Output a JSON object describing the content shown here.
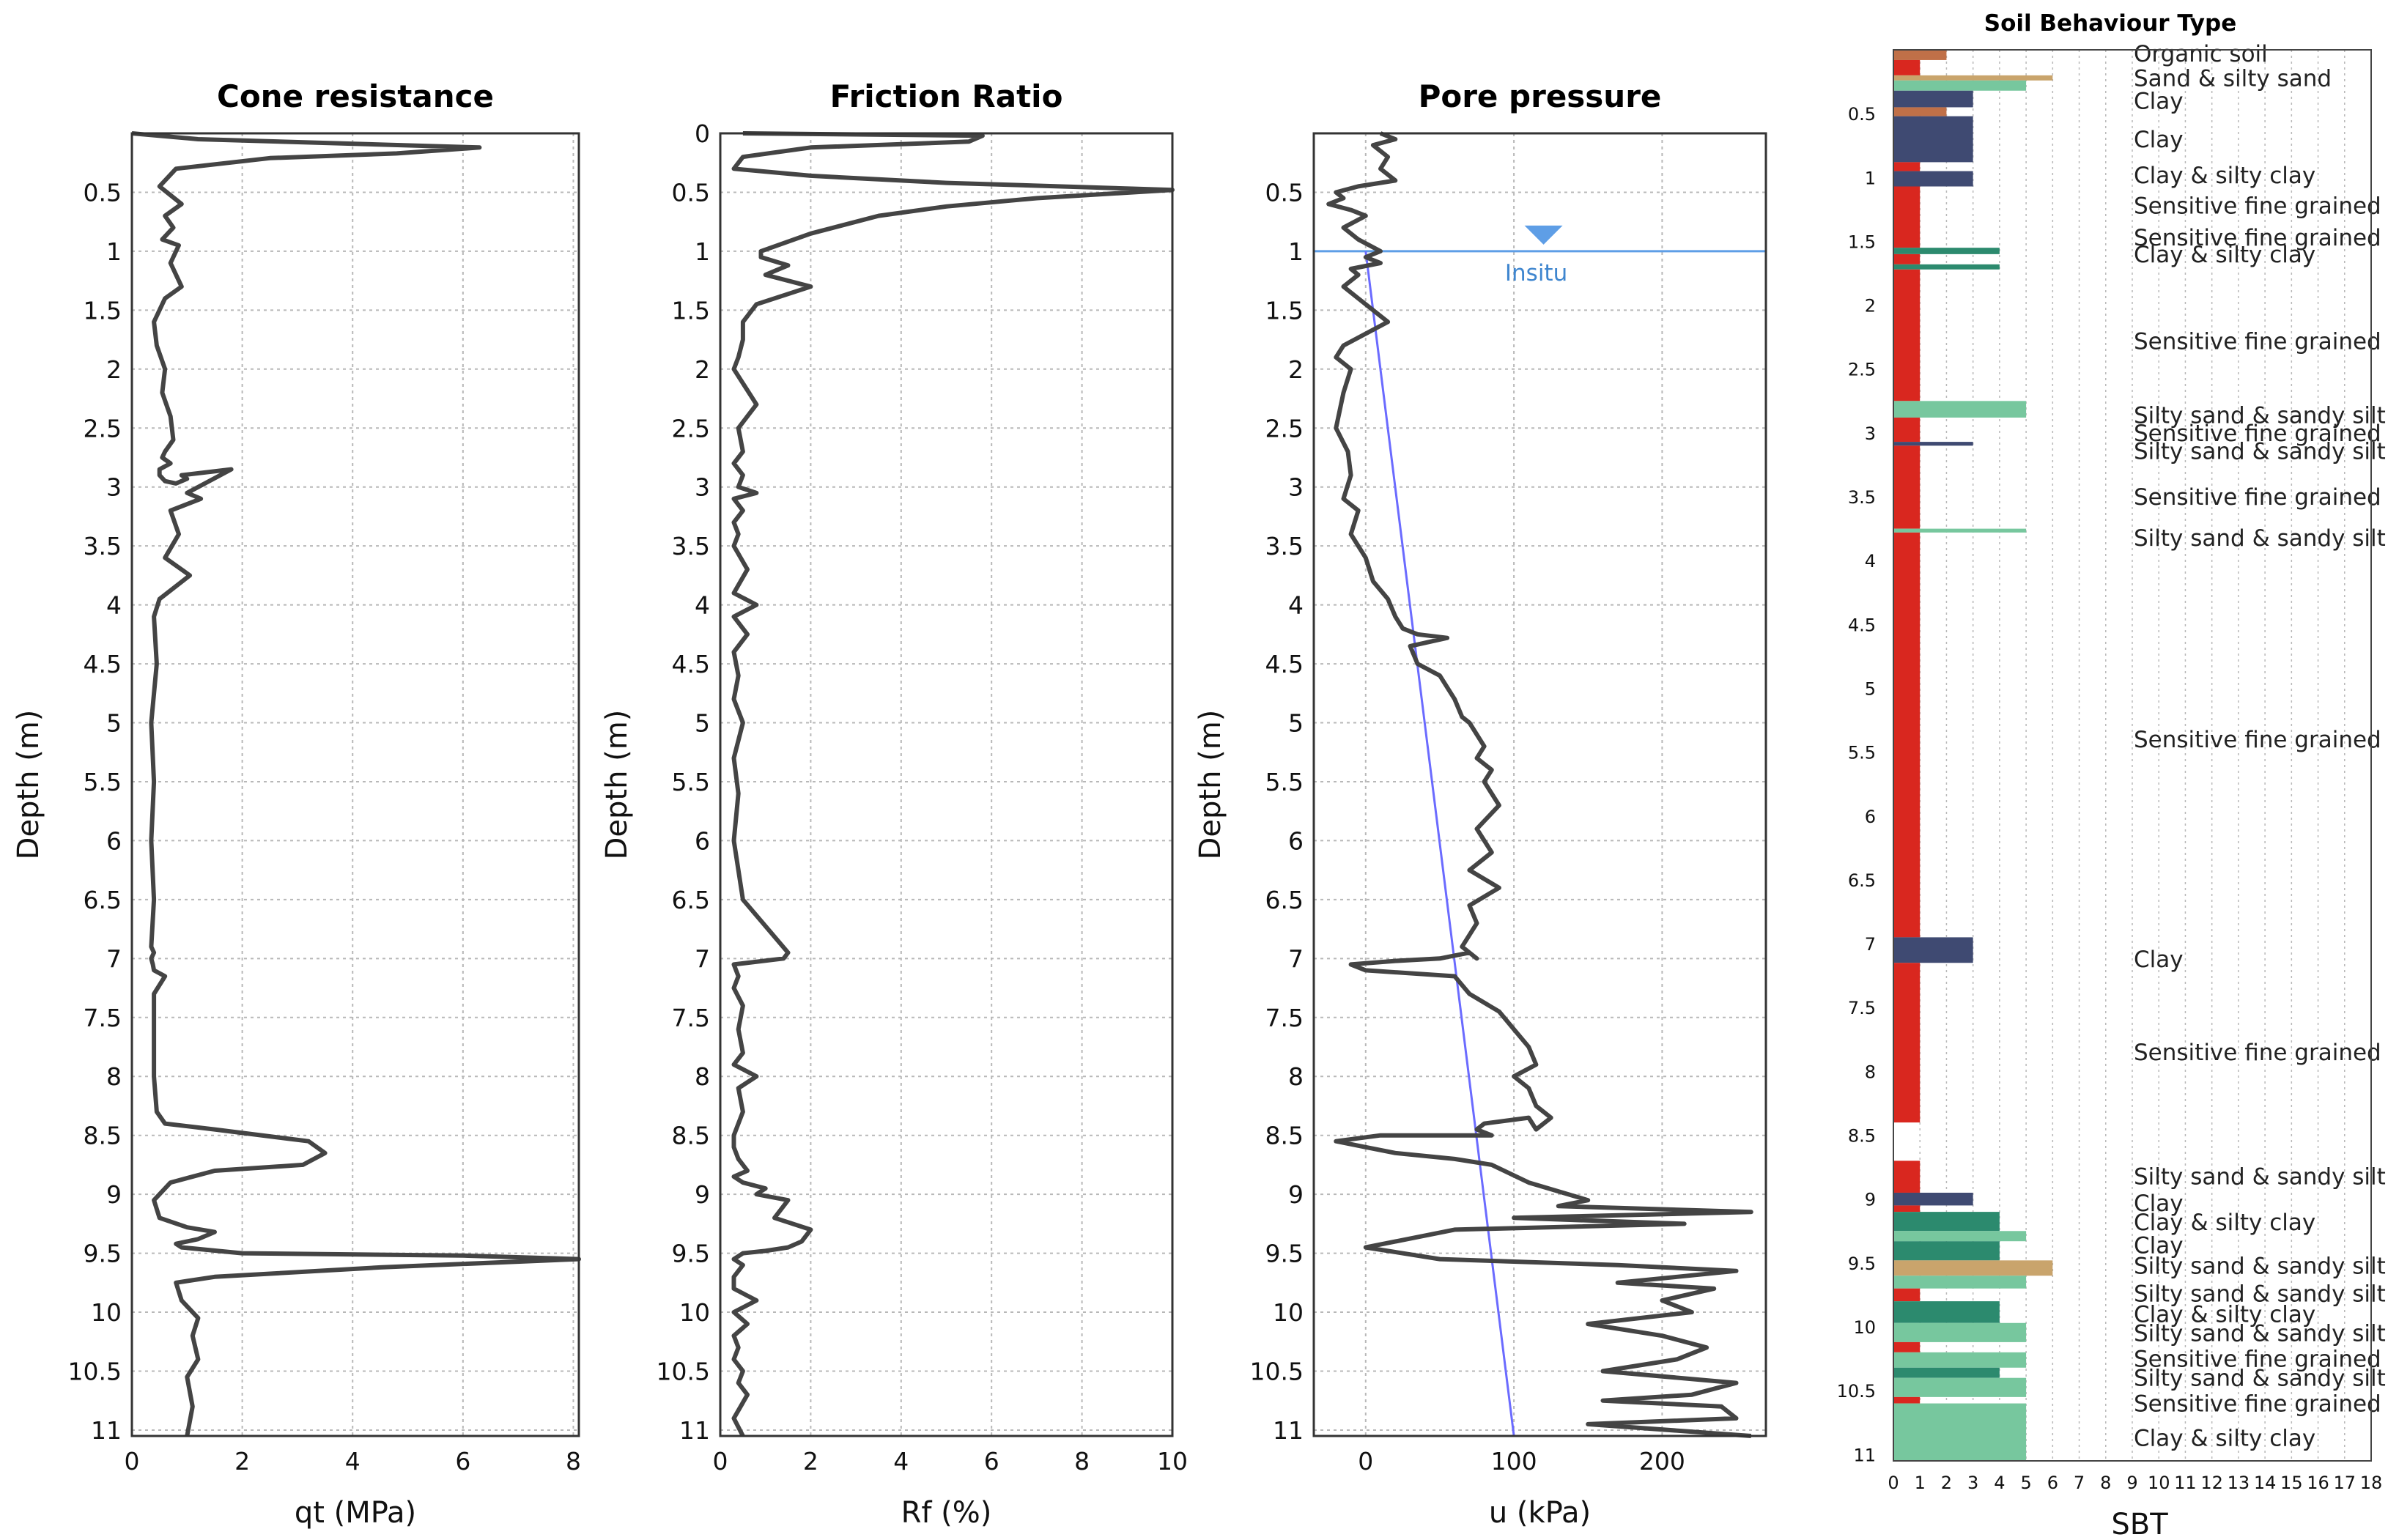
{
  "colors": {
    "curve": "#444444",
    "water": "#5e9ee6",
    "hydro": "#6b6bff",
    "sbt_red": "#d9271f",
    "sbt_navy": "#3f4a72",
    "sbt_green": "#77c79e",
    "sbt_teal": "#2c8a6e",
    "sbt_brown": "#c07048",
    "sbt_tan": "#c9a46c"
  },
  "chart_data": [
    {
      "type": "line",
      "title": "Cone resistance",
      "xlabel": "qt (MPa)",
      "ylabel": "Depth (m)",
      "xlim": [
        0,
        8.1
      ],
      "ylim": [
        11.05,
        0
      ],
      "xticks": [
        "0",
        "2",
        "4",
        "6",
        "8"
      ],
      "xtick_values": [
        0,
        2,
        4,
        6,
        8
      ],
      "yticks": [
        "0.5",
        "1",
        "1.5",
        "2",
        "2.5",
        "3",
        "3.5",
        "4",
        "4.5",
        "5",
        "5.5",
        "6",
        "6.5",
        "7",
        "7.5",
        "8",
        "8.5",
        "9",
        "9.5",
        "10",
        "10.5",
        "11"
      ],
      "ytick_values": [
        0.5,
        1,
        1.5,
        2,
        2.5,
        3,
        3.5,
        4,
        4.5,
        5,
        5.5,
        6,
        6.5,
        7,
        7.5,
        8,
        8.5,
        9,
        9.5,
        10,
        10.5,
        11
      ],
      "x": [
        0,
        1.2,
        6.3,
        4.8,
        2.5,
        0.8,
        0.5,
        0.9,
        0.6,
        0.75,
        0.55,
        0.85,
        0.7,
        0.9,
        0.6,
        0.4,
        0.45,
        0.6,
        0.55,
        0.7,
        0.75,
        0.6,
        0.55,
        0.7,
        0.5,
        0.5,
        0.6,
        0.8,
        1.0,
        0.9,
        1.8,
        1.0,
        1.25,
        0.7,
        0.85,
        0.6,
        1.05,
        0.5,
        0.4,
        0.45,
        0.35,
        0.4,
        0.35,
        0.4,
        0.35,
        0.4,
        0.35,
        0.38,
        0.4,
        0.6,
        0.4,
        0.4,
        0.4,
        0.45,
        0.6,
        1.5,
        3.2,
        3.5,
        3.1,
        1.5,
        0.7,
        0.4,
        0.5,
        1.0,
        1.5,
        1.2,
        0.8,
        0.9,
        2.0,
        6.0,
        8.1,
        4.5,
        1.5,
        0.8,
        0.9,
        1.2,
        1.1,
        1.2,
        1.0,
        1.1,
        1.0
      ],
      "y": [
        0,
        0.05,
        0.12,
        0.17,
        0.21,
        0.3,
        0.45,
        0.6,
        0.7,
        0.8,
        0.9,
        0.95,
        1.1,
        1.3,
        1.4,
        1.6,
        1.8,
        2.0,
        2.2,
        2.4,
        2.6,
        2.7,
        2.75,
        2.8,
        2.85,
        2.9,
        2.95,
        2.97,
        2.93,
        2.9,
        2.85,
        3.05,
        3.1,
        3.2,
        3.4,
        3.6,
        3.75,
        3.95,
        4.1,
        4.5,
        5.0,
        5.5,
        6.0,
        6.5,
        6.9,
        6.95,
        7.0,
        7.05,
        7.1,
        7.15,
        7.3,
        7.6,
        8.0,
        8.3,
        8.4,
        8.45,
        8.55,
        8.65,
        8.75,
        8.8,
        8.9,
        9.05,
        9.2,
        9.28,
        9.32,
        9.38,
        9.42,
        9.45,
        9.5,
        9.52,
        9.55,
        9.62,
        9.7,
        9.75,
        9.9,
        10.05,
        10.2,
        10.4,
        10.55,
        10.8,
        11.05
      ]
    },
    {
      "type": "line",
      "title": "Friction Ratio",
      "xlabel": "Rf (%)",
      "ylabel": "Depth (m)",
      "xlim": [
        0,
        10
      ],
      "ylim": [
        11.05,
        0
      ],
      "xticks": [
        "0",
        "2",
        "4",
        "6",
        "8",
        "10"
      ],
      "xtick_values": [
        0,
        2,
        4,
        6,
        8,
        10
      ],
      "yticks": [
        "0",
        "0.5",
        "1",
        "1.5",
        "2",
        "2.5",
        "3",
        "3.5",
        "4",
        "4.5",
        "5",
        "5.5",
        "6",
        "6.5",
        "7",
        "7.5",
        "8",
        "8.5",
        "9",
        "9.5",
        "10",
        "10.5",
        "11"
      ],
      "ytick_values": [
        0,
        0.5,
        1,
        1.5,
        2,
        2.5,
        3,
        3.5,
        4,
        4.5,
        5,
        5.5,
        6,
        6.5,
        7,
        7.5,
        8,
        8.5,
        9,
        9.5,
        10,
        10.5,
        11
      ],
      "x": [
        0.5,
        5.8,
        5.5,
        2.0,
        0.5,
        0.3,
        2.0,
        5.0,
        10.0,
        7.0,
        5.0,
        3.5,
        2.0,
        0.9,
        0.9,
        1.5,
        1.0,
        2.0,
        0.8,
        0.5,
        0.5,
        0.4,
        0.3,
        0.8,
        0.4,
        0.5,
        0.3,
        0.5,
        0.4,
        0.8,
        0.3,
        0.5,
        0.3,
        0.4,
        0.3,
        0.6,
        0.3,
        0.8,
        0.3,
        0.6,
        0.3,
        0.4,
        0.3,
        0.5,
        0.3,
        0.4,
        0.3,
        0.5,
        1.5,
        1.4,
        0.3,
        0.4,
        0.3,
        0.5,
        0.4,
        0.5,
        0.3,
        0.8,
        0.4,
        0.5,
        0.3,
        0.3,
        0.4,
        0.6,
        0.3,
        0.5,
        1.0,
        0.8,
        1.5,
        1.2,
        2.0,
        1.8,
        1.5,
        1.0,
        0.5,
        0.3,
        0.5,
        0.3,
        0.3,
        0.8,
        0.3,
        0.6,
        0.3,
        0.4,
        0.3,
        0.5,
        0.4,
        0.6,
        0.3,
        0.5
      ],
      "y": [
        0,
        0.02,
        0.07,
        0.12,
        0.2,
        0.3,
        0.36,
        0.42,
        0.48,
        0.55,
        0.62,
        0.7,
        0.85,
        1.0,
        1.05,
        1.12,
        1.2,
        1.3,
        1.45,
        1.6,
        1.75,
        1.9,
        2.0,
        2.3,
        2.5,
        2.7,
        2.8,
        2.9,
        3.0,
        3.05,
        3.1,
        3.2,
        3.3,
        3.4,
        3.5,
        3.7,
        3.9,
        4.0,
        4.1,
        4.25,
        4.4,
        4.6,
        4.8,
        5.0,
        5.3,
        5.6,
        6.0,
        6.5,
        6.95,
        7.0,
        7.05,
        7.15,
        7.25,
        7.4,
        7.6,
        7.8,
        7.9,
        8.0,
        8.1,
        8.3,
        8.5,
        8.6,
        8.7,
        8.8,
        8.85,
        8.9,
        8.95,
        9.0,
        9.05,
        9.2,
        9.3,
        9.4,
        9.45,
        9.48,
        9.5,
        9.55,
        9.6,
        9.7,
        9.8,
        9.9,
        10.0,
        10.1,
        10.2,
        10.3,
        10.4,
        10.5,
        10.6,
        10.7,
        10.9,
        11.05
      ]
    },
    {
      "type": "line",
      "title": "Pore pressure",
      "xlabel": "u (kPa)",
      "ylabel": "Depth (m)",
      "xlim": [
        -35,
        270
      ],
      "ylim": [
        11.05,
        0
      ],
      "xticks": [
        "0",
        "100",
        "200"
      ],
      "xtick_values": [
        0,
        100,
        200
      ],
      "yticks": [
        "0.5",
        "1",
        "1.5",
        "2",
        "2.5",
        "3",
        "3.5",
        "4",
        "4.5",
        "5",
        "5.5",
        "6",
        "6.5",
        "7",
        "7.5",
        "8",
        "8.5",
        "9",
        "9.5",
        "10",
        "10.5",
        "11"
      ],
      "ytick_values": [
        0.5,
        1,
        1.5,
        2,
        2.5,
        3,
        3.5,
        4,
        4.5,
        5,
        5.5,
        6,
        6.5,
        7,
        7.5,
        8,
        8.5,
        9,
        9.5,
        10,
        10.5,
        11
      ],
      "water_table_depth": 1.0,
      "water_table_label": "Insitu",
      "hydrostatic": {
        "x": [
          0,
          100
        ],
        "y": [
          1.0,
          11.05
        ]
      },
      "x": [
        10,
        20,
        5,
        15,
        10,
        20,
        -5,
        -20,
        -15,
        -25,
        -10,
        0,
        -15,
        -5,
        10,
        0,
        10,
        -10,
        -5,
        -15,
        -5,
        15,
        -15,
        -20,
        -10,
        -15,
        -20,
        -12,
        -10,
        -15,
        -5,
        -10,
        0,
        5,
        15,
        20,
        25,
        35,
        55,
        30,
        35,
        50,
        60,
        65,
        70,
        80,
        75,
        85,
        80,
        90,
        75,
        85,
        70,
        90,
        70,
        75,
        70,
        65,
        75,
        70,
        50,
        20,
        -10,
        0,
        60,
        70,
        90,
        100,
        110,
        115,
        100,
        110,
        115,
        125,
        115,
        110,
        80,
        75,
        85,
        10,
        -20,
        0,
        20,
        60,
        85,
        110,
        150,
        130,
        260,
        100,
        215,
        60,
        0,
        50,
        170,
        250,
        210,
        170,
        235,
        200,
        220,
        150,
        200,
        230,
        210,
        160,
        250,
        220,
        160,
        240,
        250,
        150,
        260
      ],
      "y": [
        0,
        0.05,
        0.1,
        0.2,
        0.3,
        0.4,
        0.45,
        0.5,
        0.55,
        0.6,
        0.65,
        0.7,
        0.8,
        0.9,
        1.0,
        1.05,
        1.1,
        1.15,
        1.2,
        1.3,
        1.4,
        1.6,
        1.8,
        1.9,
        2.0,
        2.2,
        2.5,
        2.7,
        2.9,
        3.1,
        3.2,
        3.4,
        3.6,
        3.8,
        3.95,
        4.1,
        4.2,
        4.25,
        4.28,
        4.35,
        4.5,
        4.6,
        4.8,
        4.95,
        5.0,
        5.2,
        5.3,
        5.4,
        5.5,
        5.7,
        5.9,
        6.1,
        6.25,
        6.4,
        6.55,
        6.7,
        6.8,
        6.9,
        7.0,
        6.95,
        7.0,
        7.02,
        7.05,
        7.1,
        7.15,
        7.3,
        7.45,
        7.6,
        7.75,
        7.9,
        8.0,
        8.1,
        8.25,
        8.35,
        8.45,
        8.35,
        8.4,
        8.45,
        8.5,
        8.5,
        8.55,
        8.6,
        8.65,
        8.7,
        8.75,
        8.9,
        9.05,
        9.1,
        9.15,
        9.2,
        9.25,
        9.3,
        9.45,
        9.55,
        9.6,
        9.65,
        9.7,
        9.75,
        9.8,
        9.9,
        10.0,
        10.1,
        10.2,
        10.3,
        10.4,
        10.5,
        10.6,
        10.7,
        10.75,
        10.8,
        10.9,
        10.95,
        11.05
      ]
    },
    {
      "type": "bar",
      "orientation": "horizontal",
      "title": "Soil Behaviour Type",
      "xlabel": "SBT",
      "xlim": [
        0,
        18
      ],
      "ylim": [
        11.05,
        0
      ],
      "xticks": [
        "0",
        "1",
        "2",
        "3",
        "4",
        "5",
        "6",
        "7",
        "8",
        "9",
        "10",
        "11",
        "12",
        "13",
        "14",
        "15",
        "16",
        "17",
        "18"
      ],
      "xtick_values": [
        0,
        1,
        2,
        3,
        4,
        5,
        6,
        7,
        8,
        9,
        10,
        11,
        12,
        13,
        14,
        15,
        16,
        17,
        18
      ],
      "yticks": [
        "0.5",
        "1",
        "1.5",
        "2",
        "2.5",
        "3",
        "3.5",
        "4",
        "4.5",
        "5",
        "5.5",
        "6",
        "6.5",
        "7",
        "7.5",
        "8",
        "8.5",
        "9",
        "9.5",
        "10",
        "10.5",
        "11"
      ],
      "ytick_values": [
        0.5,
        1,
        1.5,
        2,
        2.5,
        3,
        3.5,
        4,
        4.5,
        5,
        5.5,
        6,
        6.5,
        7,
        7.5,
        8,
        8.5,
        9,
        9.5,
        10,
        10.5,
        11
      ],
      "layers": [
        {
          "top": 0.0,
          "bottom": 0.08,
          "sbt": 2,
          "color": "sbt_brown"
        },
        {
          "top": 0.08,
          "bottom": 0.2,
          "sbt": 1,
          "color": "sbt_red"
        },
        {
          "top": 0.2,
          "bottom": 0.24,
          "sbt": 6,
          "color": "sbt_tan"
        },
        {
          "top": 0.24,
          "bottom": 0.32,
          "sbt": 5,
          "color": "sbt_green"
        },
        {
          "top": 0.32,
          "bottom": 0.45,
          "sbt": 3,
          "color": "sbt_navy"
        },
        {
          "top": 0.45,
          "bottom": 0.52,
          "sbt": 2,
          "color": "sbt_brown"
        },
        {
          "top": 0.52,
          "bottom": 0.88,
          "sbt": 3,
          "color": "sbt_navy"
        },
        {
          "top": 0.88,
          "bottom": 0.95,
          "sbt": 1,
          "color": "sbt_red"
        },
        {
          "top": 0.95,
          "bottom": 1.07,
          "sbt": 3,
          "color": "sbt_navy"
        },
        {
          "top": 1.07,
          "bottom": 1.55,
          "sbt": 1,
          "color": "sbt_red"
        },
        {
          "top": 1.55,
          "bottom": 1.6,
          "sbt": 4,
          "color": "sbt_teal"
        },
        {
          "top": 1.6,
          "bottom": 1.68,
          "sbt": 1,
          "color": "sbt_red"
        },
        {
          "top": 1.68,
          "bottom": 1.72,
          "sbt": 4,
          "color": "sbt_teal"
        },
        {
          "top": 1.72,
          "bottom": 2.75,
          "sbt": 1,
          "color": "sbt_red"
        },
        {
          "top": 2.75,
          "bottom": 2.88,
          "sbt": 5,
          "color": "sbt_green"
        },
        {
          "top": 2.88,
          "bottom": 3.07,
          "sbt": 1,
          "color": "sbt_red"
        },
        {
          "top": 3.07,
          "bottom": 3.1,
          "sbt": 3,
          "color": "sbt_navy"
        },
        {
          "top": 3.1,
          "bottom": 3.75,
          "sbt": 1,
          "color": "sbt_red"
        },
        {
          "top": 3.75,
          "bottom": 3.78,
          "sbt": 5,
          "color": "sbt_green"
        },
        {
          "top": 3.78,
          "bottom": 6.95,
          "sbt": 1,
          "color": "sbt_red"
        },
        {
          "top": 6.95,
          "bottom": 7.15,
          "sbt": 3,
          "color": "sbt_navy"
        },
        {
          "top": 7.15,
          "bottom": 8.4,
          "sbt": 1,
          "color": "sbt_red"
        },
        {
          "top": 8.7,
          "bottom": 8.95,
          "sbt": 1,
          "color": "sbt_red"
        },
        {
          "top": 8.95,
          "bottom": 9.05,
          "sbt": 3,
          "color": "sbt_navy"
        },
        {
          "top": 9.05,
          "bottom": 9.1,
          "sbt": 1,
          "color": "sbt_red"
        },
        {
          "top": 9.1,
          "bottom": 9.25,
          "sbt": 4,
          "color": "sbt_teal"
        },
        {
          "top": 9.25,
          "bottom": 9.33,
          "sbt": 5,
          "color": "sbt_green"
        },
        {
          "top": 9.33,
          "bottom": 9.48,
          "sbt": 4,
          "color": "sbt_teal"
        },
        {
          "top": 9.48,
          "bottom": 9.6,
          "sbt": 6,
          "color": "sbt_tan"
        },
        {
          "top": 9.6,
          "bottom": 9.7,
          "sbt": 5,
          "color": "sbt_green"
        },
        {
          "top": 9.7,
          "bottom": 9.8,
          "sbt": 1,
          "color": "sbt_red"
        },
        {
          "top": 9.8,
          "bottom": 9.97,
          "sbt": 4,
          "color": "sbt_teal"
        },
        {
          "top": 9.97,
          "bottom": 10.12,
          "sbt": 5,
          "color": "sbt_green"
        },
        {
          "top": 10.12,
          "bottom": 10.2,
          "sbt": 1,
          "color": "sbt_red"
        },
        {
          "top": 10.2,
          "bottom": 10.32,
          "sbt": 5,
          "color": "sbt_green"
        },
        {
          "top": 10.32,
          "bottom": 10.4,
          "sbt": 4,
          "color": "sbt_teal"
        },
        {
          "top": 10.4,
          "bottom": 10.55,
          "sbt": 5,
          "color": "sbt_green"
        },
        {
          "top": 10.55,
          "bottom": 10.6,
          "sbt": 1,
          "color": "sbt_red"
        },
        {
          "top": 10.6,
          "bottom": 11.05,
          "sbt": 5,
          "color": "sbt_green"
        }
      ],
      "annotations": [
        {
          "text": "Organic soil",
          "depth": 0.03
        },
        {
          "text": "Sand & silty sand",
          "depth": 0.22
        },
        {
          "text": "Clay",
          "depth": 0.4
        },
        {
          "text": "Clay",
          "depth": 0.7
        },
        {
          "text": "Clay & silty clay",
          "depth": 0.98
        },
        {
          "text": "Sensitive fine grained",
          "depth": 1.22
        },
        {
          "text": "Sensitive fine grained",
          "depth": 1.47
        },
        {
          "text": "Clay & silty clay",
          "depth": 1.6
        },
        {
          "text": "Sensitive fine grained",
          "depth": 2.28
        },
        {
          "text": "Silty sand & sandy silt",
          "depth": 2.86
        },
        {
          "text": "Sensitive fine grained",
          "depth": 3.0
        },
        {
          "text": "Silty sand & sandy silt",
          "depth": 3.14
        },
        {
          "text": "Sensitive fine grained",
          "depth": 3.5
        },
        {
          "text": "Silty sand & sandy silt",
          "depth": 3.82
        },
        {
          "text": "Sensitive fine grained",
          "depth": 5.4
        },
        {
          "text": "Clay",
          "depth": 7.12
        },
        {
          "text": "Sensitive fine grained",
          "depth": 7.85
        },
        {
          "text": "Silty sand & sandy silt",
          "depth": 8.82
        },
        {
          "text": "Clay",
          "depth": 9.03
        },
        {
          "text": "Clay & silty clay",
          "depth": 9.18
        },
        {
          "text": "Clay",
          "depth": 9.36
        },
        {
          "text": "Silty sand & sandy silt",
          "depth": 9.52
        },
        {
          "text": "Silty sand & sandy silt",
          "depth": 9.74
        },
        {
          "text": "Clay & silty clay",
          "depth": 9.9
        },
        {
          "text": "Silty sand & sandy silt",
          "depth": 10.05
        },
        {
          "text": "Sensitive fine grained",
          "depth": 10.25
        },
        {
          "text": "Silty sand & sandy silt",
          "depth": 10.4
        },
        {
          "text": "Sensitive fine grained",
          "depth": 10.6
        },
        {
          "text": "Clay & silty clay",
          "depth": 10.87
        }
      ]
    }
  ]
}
